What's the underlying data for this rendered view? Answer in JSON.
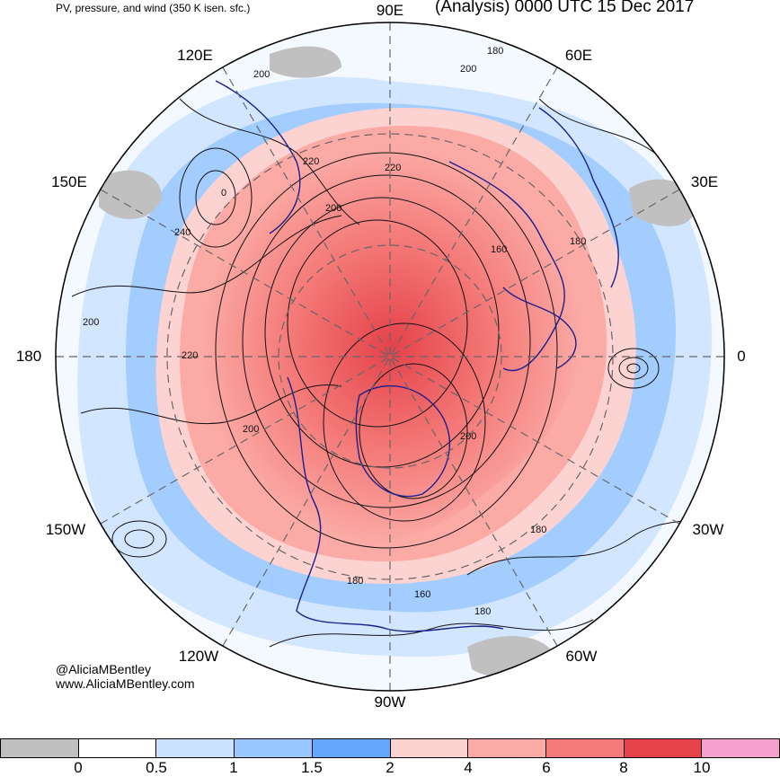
{
  "header": {
    "subtitle": "PV, pressure, and wind (350 K isen. sfc.)",
    "title": "(Analysis) 0000 UTC 15 Dec 2017"
  },
  "map": {
    "projection": "north-polar-stereographic",
    "longitude_labels": [
      "90E",
      "60E",
      "30E",
      "0",
      "30W",
      "60W",
      "90W",
      "120W",
      "150W",
      "180",
      "150E",
      "120E"
    ],
    "contour_labels": [
      "180",
      "200",
      "220",
      "220",
      "200",
      "200",
      "220",
      "240",
      "200",
      "160",
      "180",
      "200",
      "180",
      "180",
      "160",
      "180",
      "200",
      "0"
    ]
  },
  "credits": {
    "handle": "@AliciaMBentley",
    "website": "www.AliciaMBentley.com"
  },
  "colorbar": {
    "colors": [
      "#c0c0c0",
      "#ffffff",
      "#cce3ff",
      "#99c7ff",
      "#66a8ff",
      "#fcd3d1",
      "#fbaaa6",
      "#f47b79",
      "#e5424a",
      "#f5a0cf"
    ],
    "tick_labels": [
      "0",
      "0.5",
      "1",
      "1.5",
      "2",
      "4",
      "6",
      "8",
      "10"
    ]
  }
}
